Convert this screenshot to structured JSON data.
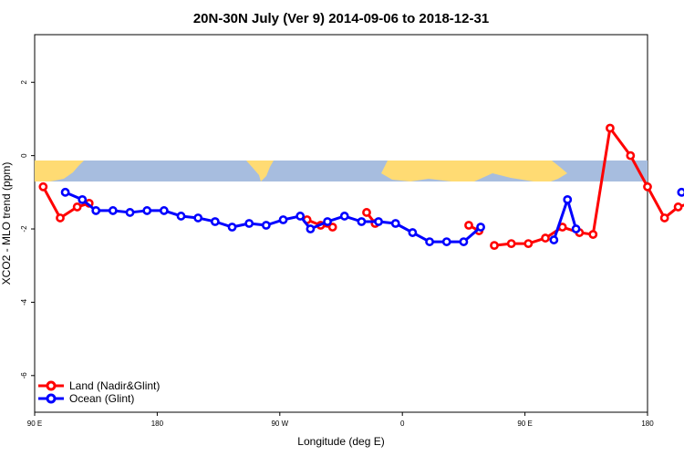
{
  "chart_data": {
    "type": "line",
    "title": "20N-30N July (Ver 9)   2014-09-06 to 2018-12-31",
    "xlabel": "Longitude (deg E)",
    "ylabel": "XCO2 - MLO trend (ppm)",
    "xlim": [
      90,
      450
    ],
    "ylim": [
      -7,
      3.3
    ],
    "x_ticks": [
      {
        "value": 90,
        "label": "90 E"
      },
      {
        "value": 180,
        "label": "180"
      },
      {
        "value": 270,
        "label": "90 W"
      },
      {
        "value": 360,
        "label": "0"
      },
      {
        "value": 450,
        "label": "90 E"
      },
      {
        "value": 540,
        "label": "180"
      }
    ],
    "y_ticks": [
      {
        "value": 2,
        "label": "2"
      },
      {
        "value": 0,
        "label": "0"
      },
      {
        "value": -2,
        "label": "-2"
      },
      {
        "value": -4,
        "label": "-4"
      },
      {
        "value": -6,
        "label": "-6"
      }
    ],
    "grid": false,
    "legend_position": "bottom-left",
    "series": [
      {
        "name": "Land (Nadir&Glint)",
        "color": "#ff0000",
        "points": [
          [
            95,
            -0.85
          ],
          [
            105,
            -1.7
          ],
          [
            115,
            -1.4
          ],
          [
            122,
            -1.3
          ],
          null,
          [
            250,
            -1.75
          ],
          [
            258,
            -1.9
          ],
          [
            265,
            -1.95
          ],
          null,
          [
            285,
            -1.55
          ],
          [
            290,
            -1.85
          ],
          null,
          [
            345,
            -1.9
          ],
          [
            351,
            -2.05
          ],
          null,
          [
            360,
            -2.45
          ],
          [
            370,
            -2.4
          ],
          [
            380,
            -2.4
          ],
          [
            390,
            -2.25
          ],
          [
            400,
            -1.95
          ],
          [
            410,
            -2.1
          ],
          [
            418,
            -2.15
          ],
          [
            428,
            0.75
          ],
          [
            440,
            0.0
          ],
          [
            450,
            -0.85
          ],
          [
            460,
            -1.7
          ],
          [
            468,
            -1.4
          ],
          [
            475,
            -1.3
          ]
        ]
      },
      {
        "name": "Ocean (Glint)",
        "color": "#0000ff",
        "points": [
          [
            108,
            -1.0
          ],
          [
            118,
            -1.2
          ],
          [
            126,
            -1.5
          ],
          [
            136,
            -1.5
          ],
          [
            146,
            -1.55
          ],
          [
            156,
            -1.5
          ],
          [
            166,
            -1.5
          ],
          [
            176,
            -1.65
          ],
          [
            186,
            -1.7
          ],
          [
            196,
            -1.8
          ],
          [
            206,
            -1.95
          ],
          [
            216,
            -1.85
          ],
          [
            226,
            -1.9
          ],
          [
            236,
            -1.75
          ],
          [
            246,
            -1.65
          ],
          [
            252,
            -2.0
          ],
          [
            262,
            -1.8
          ],
          [
            272,
            -1.65
          ],
          [
            282,
            -1.8
          ],
          [
            292,
            -1.8
          ],
          [
            302,
            -1.85
          ],
          [
            312,
            -2.1
          ],
          [
            322,
            -2.35
          ],
          [
            332,
            -2.35
          ],
          [
            342,
            -2.35
          ],
          [
            352,
            -1.95
          ],
          null,
          [
            395,
            -2.3
          ],
          [
            403,
            -1.2
          ],
          [
            408,
            -2.0
          ],
          null,
          [
            470,
            -1.0
          ],
          [
            478,
            -1.2
          ],
          [
            486,
            -1.5
          ],
          [
            496,
            -1.5
          ],
          [
            506,
            -1.55
          ],
          [
            516,
            -1.5
          ],
          [
            526,
            -1.5
          ],
          [
            536,
            -1.65
          ]
        ]
      }
    ]
  },
  "map_strip": {
    "ocean_color": "#a7bddf",
    "land_color": "#ffdb73"
  }
}
